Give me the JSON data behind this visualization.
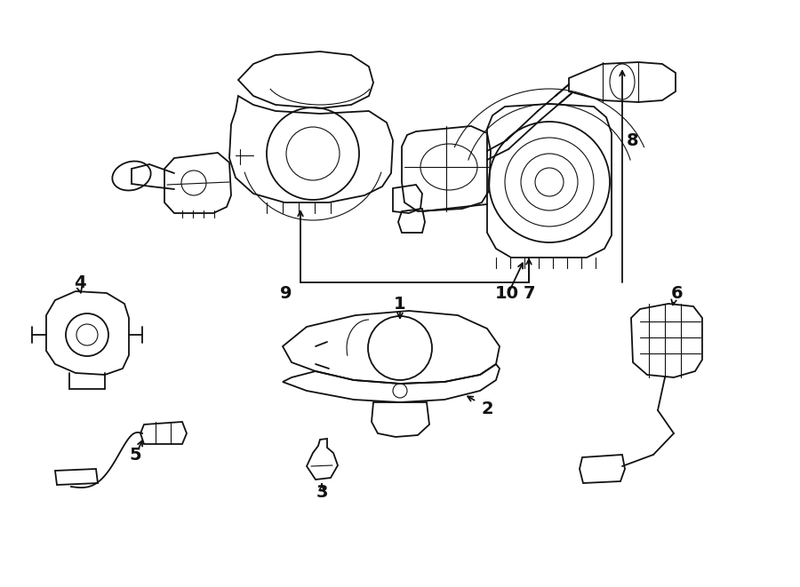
{
  "background_color": "#ffffff",
  "line_color": "#111111",
  "figsize": [
    9.0,
    6.61
  ],
  "dpi": 100,
  "label_fontsize": 14
}
